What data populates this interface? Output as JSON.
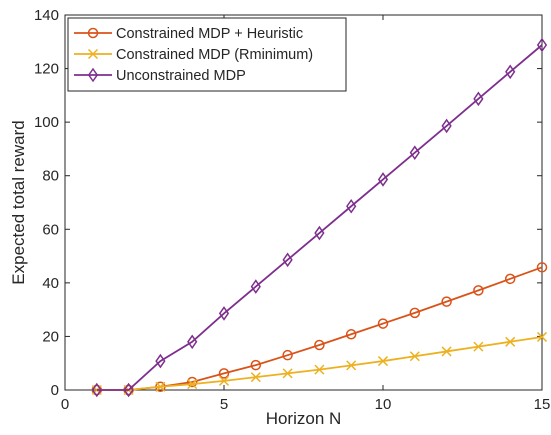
{
  "chart_data": {
    "type": "line",
    "title": "",
    "xlabel": "Horizon N",
    "ylabel": "Expected total reward",
    "xlim": [
      0,
      15
    ],
    "ylim": [
      0,
      140
    ],
    "xticks": [
      0,
      5,
      10,
      15
    ],
    "yticks": [
      0,
      20,
      40,
      60,
      80,
      100,
      120,
      140
    ],
    "grid": false,
    "legend_position": "top-left",
    "x": [
      1,
      2,
      3,
      4,
      5,
      6,
      7,
      8,
      9,
      10,
      11,
      12,
      13,
      14,
      15
    ],
    "series": [
      {
        "name": "Constrained MDP + Heuristic",
        "color": "#d95319",
        "marker": "circle",
        "values": [
          0,
          0,
          1.2,
          3.0,
          6.2,
          9.3,
          13.0,
          16.8,
          20.8,
          24.8,
          28.8,
          33.0,
          37.2,
          41.5,
          45.8
        ]
      },
      {
        "name": "Constrained MDP (Rminimum)",
        "color": "#edb120",
        "marker": "x",
        "values": [
          0,
          0,
          1.2,
          2.2,
          3.4,
          4.8,
          6.2,
          7.6,
          9.2,
          10.8,
          12.6,
          14.4,
          16.2,
          18.0,
          19.8
        ]
      },
      {
        "name": "Unconstrained MDP",
        "color": "#7e2f8e",
        "marker": "diamond",
        "values": [
          0,
          0,
          10.8,
          18.0,
          28.6,
          38.6,
          48.6,
          58.6,
          68.6,
          78.6,
          88.6,
          98.6,
          108.7,
          118.8,
          128.8
        ]
      }
    ]
  }
}
